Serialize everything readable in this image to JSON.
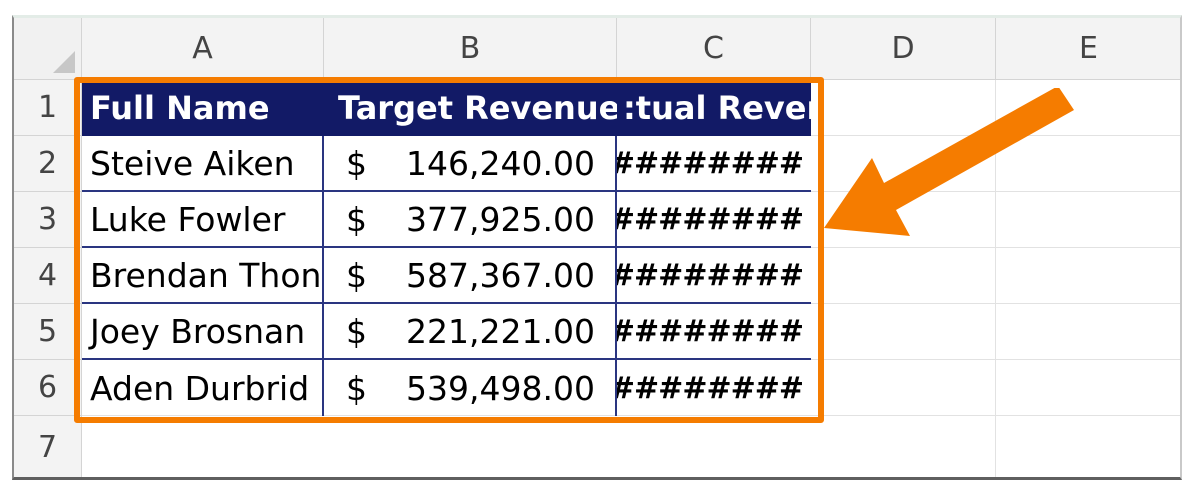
{
  "columns": [
    "A",
    "B",
    "C",
    "D",
    "E"
  ],
  "rows": [
    "1",
    "2",
    "3",
    "4",
    "5",
    "6",
    "7"
  ],
  "table": {
    "headers": [
      "Full Name",
      "Target Revenue",
      ":tual Reven"
    ],
    "records": [
      {
        "name": "Steive Aiken",
        "currency": "$",
        "target": "146,240.00",
        "actual": "#########"
      },
      {
        "name": "Luke Fowler",
        "currency": "$",
        "target": "377,925.00",
        "actual": "#########"
      },
      {
        "name": "Brendan Thon",
        "currency": "$",
        "target": "587,367.00",
        "actual": "#########"
      },
      {
        "name": "Joey Brosnan",
        "currency": "$",
        "target": "221,221.00",
        "actual": "#########"
      },
      {
        "name": "Aden Durbrid",
        "currency": "$",
        "target": "539,498.00",
        "actual": "#########"
      }
    ]
  },
  "colors": {
    "header_fill": "#121a66",
    "highlight": "#f57c00",
    "cell_border": "#2a3580"
  }
}
